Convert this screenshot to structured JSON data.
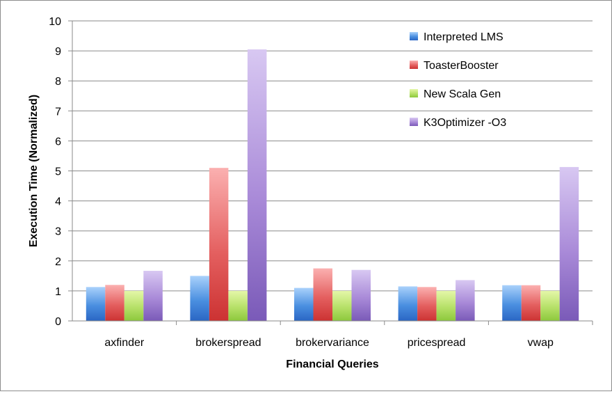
{
  "chart_data": {
    "type": "bar",
    "title": "",
    "xlabel": "Financial Queries",
    "ylabel": "Execution Time (Normalized)",
    "ylim": [
      0,
      10
    ],
    "yticks": [
      0,
      1,
      2,
      3,
      4,
      5,
      6,
      7,
      8,
      9,
      10
    ],
    "grid": true,
    "legend_position": "top-right",
    "categories": [
      "axfinder",
      "brokerspread",
      "brokervariance",
      "pricespread",
      "vwap"
    ],
    "series": [
      {
        "name": "Interpreted LMS",
        "color_light": "#a9d1fb",
        "color": "#4a8fe0",
        "color_dark": "#2a66c4",
        "values": [
          1.13,
          1.5,
          1.1,
          1.15,
          1.19
        ]
      },
      {
        "name": "ToasterBooster",
        "color_light": "#fbb0b0",
        "color": "#e46060",
        "color_dark": "#cc3232",
        "values": [
          1.2,
          5.1,
          1.75,
          1.13,
          1.19
        ]
      },
      {
        "name": "New Scala Gen",
        "color_light": "#e4f7a8",
        "color": "#b6e068",
        "color_dark": "#8cc83c",
        "values": [
          1.0,
          1.0,
          1.0,
          1.0,
          1.0
        ]
      },
      {
        "name": "K3Optimizer -O3",
        "color_light": "#d8c8f2",
        "color": "#a98ad8",
        "color_dark": "#7a5ab8",
        "values": [
          1.67,
          9.05,
          1.7,
          1.36,
          5.13
        ]
      }
    ]
  }
}
